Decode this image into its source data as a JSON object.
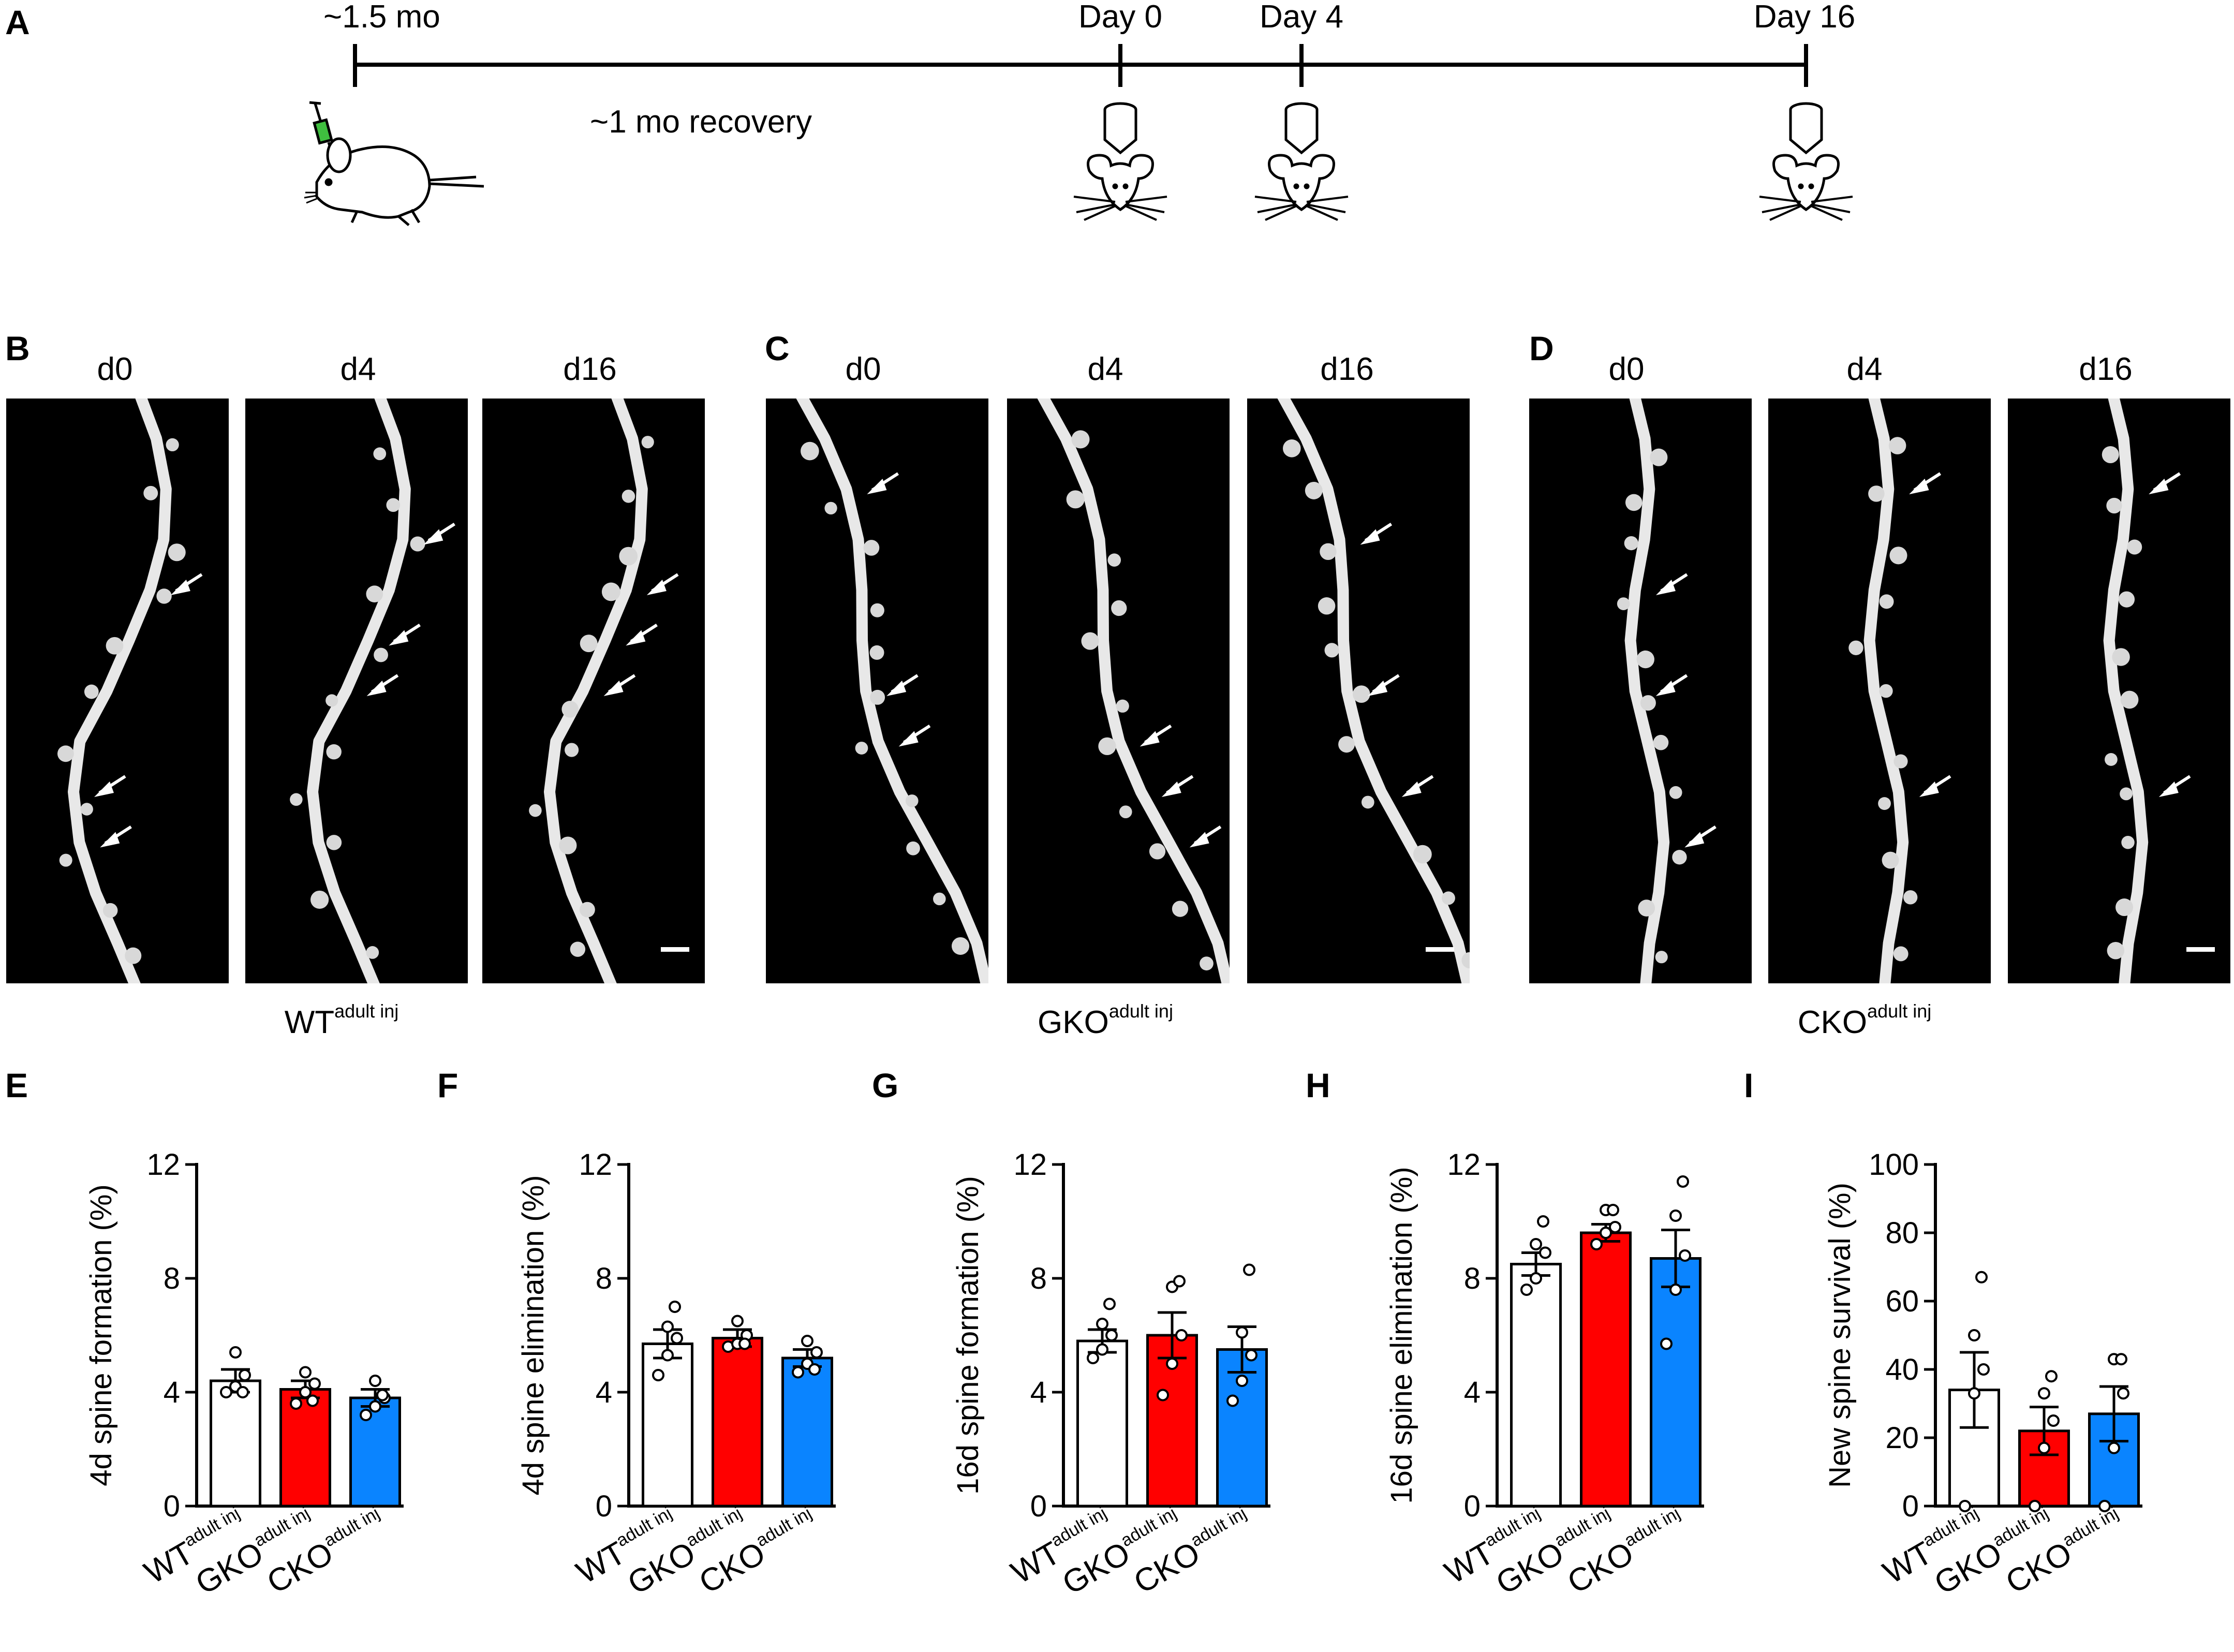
{
  "panel_a": {
    "letter": "A",
    "start_label": "~1.5 mo",
    "recovery_label": "~1 mo recovery",
    "days": [
      "Day 0",
      "Day 4",
      "Day 16"
    ]
  },
  "micrographs": {
    "groups": [
      {
        "letter": "B",
        "genotype_main": "WT",
        "genotype_sup": "adult inj",
        "timepoints": [
          "d0",
          "d4",
          "d16"
        ]
      },
      {
        "letter": "C",
        "genotype_main": "GKO",
        "genotype_sup": "adult inj",
        "timepoints": [
          "d0",
          "d4",
          "d16"
        ]
      },
      {
        "letter": "D",
        "genotype_main": "CKO",
        "genotype_sup": "adult inj",
        "timepoints": [
          "d0",
          "d4",
          "d16"
        ]
      }
    ]
  },
  "chart_data": [
    {
      "letter": "E",
      "type": "bar",
      "categories": [
        "WT",
        "GKO",
        "CKO"
      ],
      "category_sup": "adult inj",
      "values": [
        4.4,
        4.1,
        3.8
      ],
      "sem": [
        0.4,
        0.3,
        0.3
      ],
      "points": [
        [
          4.0,
          4.2,
          4.6,
          5.4,
          4.0
        ],
        [
          3.6,
          4.0,
          4.3,
          4.7,
          3.7
        ],
        [
          3.2,
          3.5,
          3.8,
          4.4,
          3.9
        ]
      ],
      "colors": [
        "#ffffff",
        "#ff0000",
        "#0a84ff"
      ],
      "ylabel": "4d spine formation (%)",
      "ylim": [
        0,
        12
      ],
      "yticks": [
        0,
        4,
        8,
        12
      ]
    },
    {
      "letter": "F",
      "type": "bar",
      "categories": [
        "WT",
        "GKO",
        "CKO"
      ],
      "category_sup": "adult inj",
      "values": [
        5.7,
        5.9,
        5.2
      ],
      "sem": [
        0.5,
        0.3,
        0.3
      ],
      "points": [
        [
          4.6,
          5.3,
          5.9,
          6.3,
          7.0
        ],
        [
          5.6,
          5.7,
          6.0,
          6.5,
          5.7
        ],
        [
          4.7,
          5.0,
          5.4,
          5.8,
          4.8
        ]
      ],
      "colors": [
        "#ffffff",
        "#ff0000",
        "#0a84ff"
      ],
      "ylabel": "4d spine elimination (%)",
      "ylim": [
        0,
        12
      ],
      "yticks": [
        0,
        4,
        8,
        12
      ]
    },
    {
      "letter": "G",
      "type": "bar",
      "categories": [
        "WT",
        "GKO",
        "CKO"
      ],
      "category_sup": "adult inj",
      "values": [
        5.8,
        6.0,
        5.5
      ],
      "sem": [
        0.4,
        0.8,
        0.8
      ],
      "points": [
        [
          5.2,
          5.5,
          6.0,
          6.4,
          7.1
        ],
        [
          3.9,
          5.0,
          6.0,
          7.7,
          7.9
        ],
        [
          3.7,
          4.4,
          5.3,
          6.1,
          8.3
        ]
      ],
      "colors": [
        "#ffffff",
        "#ff0000",
        "#0a84ff"
      ],
      "ylabel": "16d spine formation (%)",
      "ylim": [
        0,
        12
      ],
      "yticks": [
        0,
        4,
        8,
        12
      ]
    },
    {
      "letter": "H",
      "type": "bar",
      "categories": [
        "WT",
        "GKO",
        "CKO"
      ],
      "category_sup": "adult inj",
      "values": [
        8.5,
        9.6,
        8.7
      ],
      "sem": [
        0.4,
        0.3,
        1.0
      ],
      "points": [
        [
          7.6,
          8.0,
          8.9,
          9.2,
          10.0
        ],
        [
          9.2,
          9.6,
          9.8,
          10.4,
          10.4
        ],
        [
          5.7,
          7.6,
          8.8,
          10.2,
          11.4
        ]
      ],
      "colors": [
        "#ffffff",
        "#ff0000",
        "#0a84ff"
      ],
      "ylabel": "16d spine elimination (%)",
      "ylim": [
        0,
        12
      ],
      "yticks": [
        0,
        4,
        8,
        12
      ]
    },
    {
      "letter": "I",
      "type": "bar",
      "categories": [
        "WT",
        "GKO",
        "CKO"
      ],
      "category_sup": "adult inj",
      "values": [
        34,
        22,
        27
      ],
      "sem": [
        11,
        7,
        8
      ],
      "points": [
        [
          0,
          33,
          40,
          50,
          67
        ],
        [
          0,
          17,
          25,
          33,
          38
        ],
        [
          0,
          17,
          33,
          43,
          43
        ]
      ],
      "colors": [
        "#ffffff",
        "#ff0000",
        "#0a84ff"
      ],
      "ylabel": "New spine survival (%)",
      "ylim": [
        0,
        100
      ],
      "yticks": [
        0,
        20,
        40,
        60,
        80,
        100
      ]
    }
  ]
}
